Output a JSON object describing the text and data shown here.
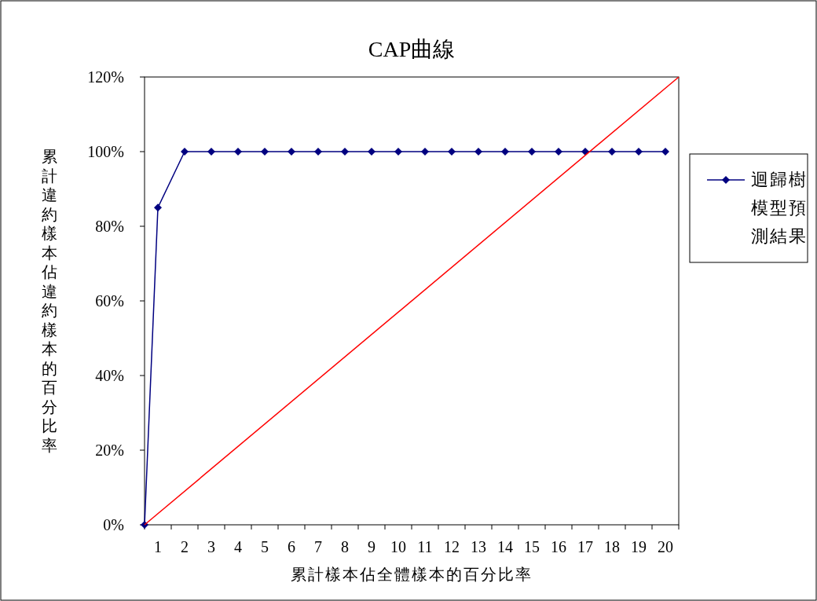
{
  "chart_data": {
    "type": "line",
    "title": "CAP曲線",
    "xlabel": "累計樣本佔全體樣本的百分比率",
    "ylabel": "累計違約樣本佔違約樣本的百分比率",
    "xlim": [
      0,
      20
    ],
    "xticks": [
      {
        "value": 0,
        "label": null
      },
      {
        "value": 0.5,
        "label": "1"
      },
      {
        "value": 1,
        "label": null
      },
      {
        "value": 1.5,
        "label": "2"
      },
      {
        "value": 2,
        "label": null
      },
      {
        "value": 2.5,
        "label": "3"
      },
      {
        "value": 3,
        "label": null
      },
      {
        "value": 3.5,
        "label": "4"
      },
      {
        "value": 4,
        "label": null
      },
      {
        "value": 4.5,
        "label": "5"
      },
      {
        "value": 5,
        "label": null
      },
      {
        "value": 5.5,
        "label": "6"
      },
      {
        "value": 6,
        "label": null
      },
      {
        "value": 6.5,
        "label": "7"
      },
      {
        "value": 7,
        "label": null
      },
      {
        "value": 7.5,
        "label": "8"
      },
      {
        "value": 8,
        "label": null
      },
      {
        "value": 8.5,
        "label": "9"
      },
      {
        "value": 9,
        "label": null
      },
      {
        "value": 9.5,
        "label": "10"
      },
      {
        "value": 10,
        "label": null
      },
      {
        "value": 10.5,
        "label": "11"
      },
      {
        "value": 11,
        "label": null
      },
      {
        "value": 11.5,
        "label": "12"
      },
      {
        "value": 12,
        "label": null
      },
      {
        "value": 12.5,
        "label": "13"
      },
      {
        "value": 13,
        "label": null
      },
      {
        "value": 13.5,
        "label": "14"
      },
      {
        "value": 14,
        "label": null
      },
      {
        "value": 14.5,
        "label": "15"
      },
      {
        "value": 15,
        "label": null
      },
      {
        "value": 15.5,
        "label": "16"
      },
      {
        "value": 16,
        "label": null
      },
      {
        "value": 16.5,
        "label": "17"
      },
      {
        "value": 17,
        "label": null
      },
      {
        "value": 17.5,
        "label": "18"
      },
      {
        "value": 18,
        "label": null
      },
      {
        "value": 18.5,
        "label": "19"
      },
      {
        "value": 19,
        "label": null
      },
      {
        "value": 19.5,
        "label": "20"
      },
      {
        "value": 20,
        "label": null
      }
    ],
    "ylim": [
      0,
      120
    ],
    "yticks": [
      {
        "value": 0,
        "label": "0%"
      },
      {
        "value": 20,
        "label": "20%"
      },
      {
        "value": 40,
        "label": "40%"
      },
      {
        "value": 60,
        "label": "60%"
      },
      {
        "value": 80,
        "label": "80%"
      },
      {
        "value": 100,
        "label": "100%"
      },
      {
        "value": 120,
        "label": "120%"
      }
    ],
    "series": [
      {
        "name": "迴歸樹模型預測結果",
        "color": "#000080",
        "marker": "diamond",
        "x": [
          0,
          0.5,
          1.5,
          2.5,
          3.5,
          4.5,
          5.5,
          6.5,
          7.5,
          8.5,
          9.5,
          10.5,
          11.5,
          12.5,
          13.5,
          14.5,
          15.5,
          16.5,
          17.5,
          18.5,
          19.5
        ],
        "values": [
          0,
          85,
          100,
          100,
          100,
          100,
          100,
          100,
          100,
          100,
          100,
          100,
          100,
          100,
          100,
          100,
          100,
          100,
          100,
          100,
          100
        ]
      },
      {
        "color": "#ff0000",
        "marker": "none",
        "x": [
          0,
          20
        ],
        "values": [
          0,
          120
        ]
      }
    ],
    "legend": "right",
    "grid": false,
    "line_style": "solid"
  }
}
